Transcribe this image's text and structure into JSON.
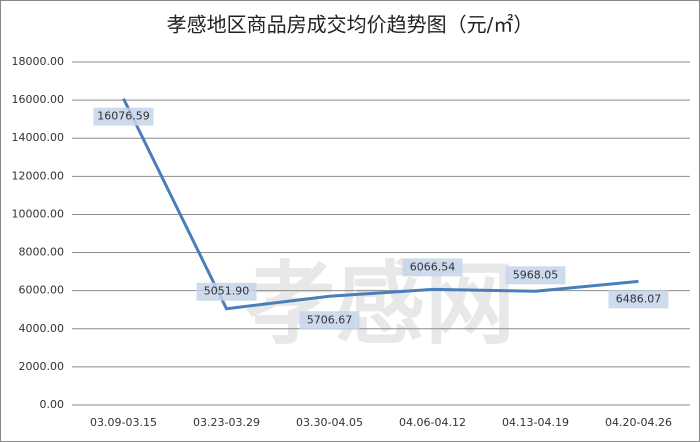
{
  "chart_data": {
    "type": "line",
    "title": "孝感地区商品房成交均价趋势图（元/㎡）",
    "watermark": "孝感网",
    "categories": [
      "03.09-03.15",
      "03.23-03.29",
      "03.30-04.05",
      "04.06-04.12",
      "04.13-04.19",
      "04.20-04.26"
    ],
    "series": [
      {
        "color": "#4a7ebb",
        "values": [
          16076.59,
          5051.9,
          5706.67,
          6066.54,
          5968.05,
          6486.07
        ],
        "value_labels": [
          "16076.59",
          "5051.90",
          "5706.67",
          "6066.54",
          "5968.05",
          "6486.07"
        ]
      }
    ],
    "ylim": [
      0,
      18000
    ],
    "yticks": [
      {
        "value": 0,
        "label": "0.00"
      },
      {
        "value": 2000,
        "label": "2000.00"
      },
      {
        "value": 4000,
        "label": "4000.00"
      },
      {
        "value": 6000,
        "label": "6000.00"
      },
      {
        "value": 8000,
        "label": "8000.00"
      },
      {
        "value": 10000,
        "label": "10000.00"
      },
      {
        "value": 12000,
        "label": "12000.00"
      },
      {
        "value": 14000,
        "label": "14000.00"
      },
      {
        "value": 16000,
        "label": "16000.00"
      },
      {
        "value": 18000,
        "label": "18000.00"
      }
    ],
    "grid": true
  }
}
